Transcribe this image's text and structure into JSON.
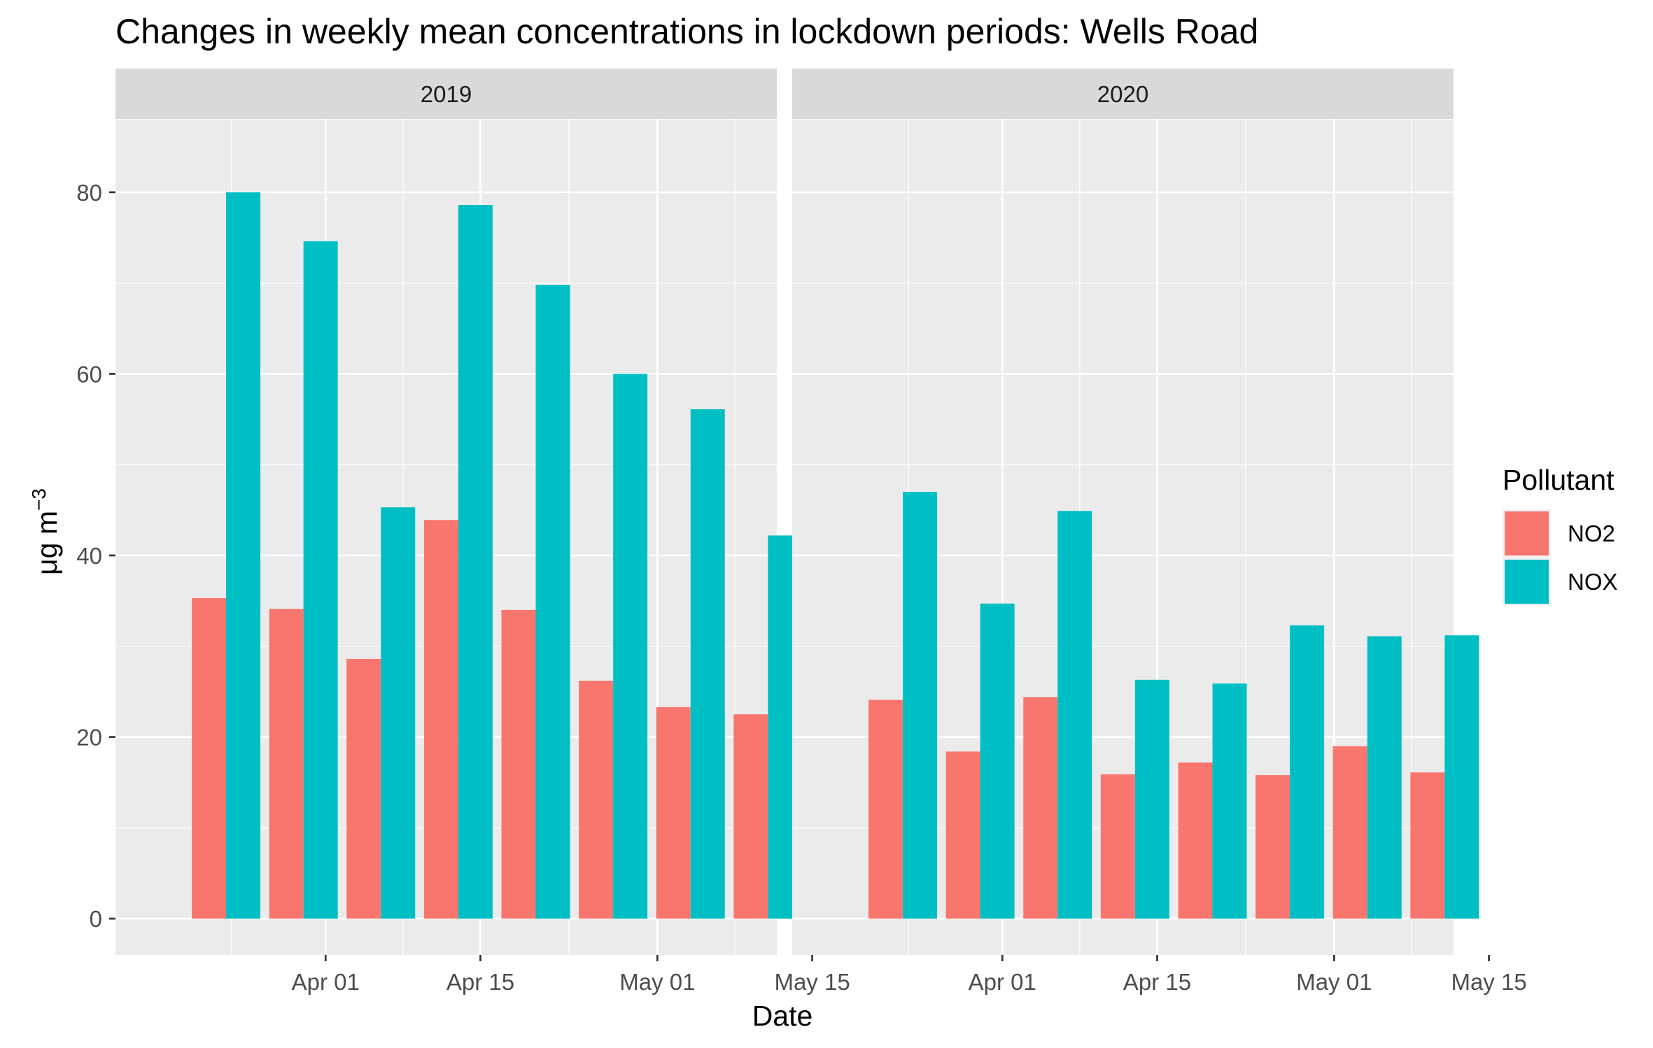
{
  "chart_data": {
    "type": "bar",
    "title": "Changes in weekly mean concentrations in lockdown periods: Wells Road",
    "xlabel": "Date",
    "ylabel": "μg m",
    "ylabel_superscript": "−3",
    "ylim": [
      -4,
      88
    ],
    "y_ticks": [
      0,
      20,
      40,
      60,
      80
    ],
    "x_tick_labels": [
      "Apr 01",
      "Apr 15",
      "May 01",
      "May 15"
    ],
    "grid": true,
    "legend": {
      "title": "Pollutant",
      "placement": "right",
      "entries": [
        {
          "name": "NO2",
          "color": "#F8766D"
        },
        {
          "name": "NOX",
          "color": "#00BFC4"
        }
      ]
    },
    "colors": {
      "panel_background": "#EBEBEB",
      "strip_background": "#D9D9D9",
      "grid": "#FFFFFF",
      "NO2": "#F8766D",
      "NOX": "#00BFC4"
    },
    "facets": [
      {
        "label": "2019",
        "x": [
          "2019-03-23",
          "2019-03-30",
          "2019-04-06",
          "2019-04-13",
          "2019-04-20",
          "2019-04-27",
          "2019-05-04",
          "2019-05-11"
        ],
        "series": [
          {
            "name": "NO2",
            "values": [
              35.3,
              34.1,
              28.6,
              43.9,
              34.0,
              26.2,
              23.3,
              22.5
            ]
          },
          {
            "name": "NOX",
            "values": [
              80.0,
              74.6,
              45.3,
              78.6,
              69.8,
              60.0,
              56.1,
              42.2
            ]
          }
        ]
      },
      {
        "label": "2020",
        "x": [
          "2020-03-23",
          "2020-03-30",
          "2020-04-06",
          "2020-04-13",
          "2020-04-20",
          "2020-04-27",
          "2020-05-04",
          "2020-05-11"
        ],
        "series": [
          {
            "name": "NO2",
            "values": [
              24.1,
              18.4,
              24.4,
              15.9,
              17.2,
              15.8,
              19.0,
              16.1
            ]
          },
          {
            "name": "NOX",
            "values": [
              47.0,
              34.7,
              44.9,
              26.3,
              25.9,
              32.3,
              31.1,
              31.2
            ]
          }
        ]
      }
    ]
  }
}
